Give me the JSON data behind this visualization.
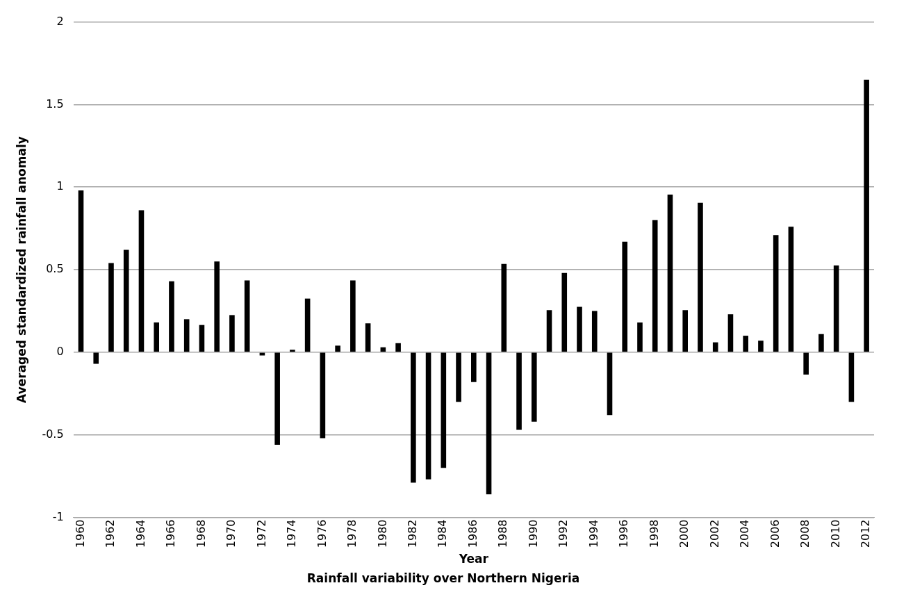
{
  "chart_data": {
    "type": "bar",
    "title": "Rainfall variability over Northern Nigeria",
    "xlabel": "Year",
    "ylabel": "Averaged standardized rainfall anomaly",
    "categories": [
      "1960",
      null,
      "1962",
      null,
      "1964",
      null,
      "1966",
      null,
      "1968",
      null,
      "1970",
      null,
      "1972",
      null,
      "1974",
      null,
      "1976",
      null,
      "1978",
      null,
      "1980",
      null,
      "1982",
      null,
      "1984",
      null,
      "1986",
      null,
      "1988",
      null,
      "1990",
      null,
      "1992",
      null,
      "1994",
      null,
      "1996",
      null,
      "1998",
      null,
      "2000",
      null,
      "2002",
      null,
      "2004",
      null,
      "2006",
      null,
      "2008",
      null,
      "2010",
      null,
      "2012"
    ],
    "values": [
      0.98,
      -0.07,
      0.54,
      0.62,
      0.86,
      0.18,
      0.43,
      0.2,
      0.165,
      0.55,
      0.225,
      0.435,
      -0.02,
      -0.56,
      0.015,
      0.325,
      -0.52,
      0.04,
      0.435,
      0.175,
      0.03,
      0.055,
      -0.79,
      -0.77,
      -0.7,
      -0.3,
      -0.18,
      -0.86,
      0.535,
      -0.47,
      -0.42,
      0.255,
      0.48,
      0.275,
      0.25,
      -0.38,
      0.67,
      0.18,
      0.8,
      0.955,
      0.255,
      0.905,
      0.06,
      0.23,
      0.1,
      0.07,
      0.71,
      0.76,
      -0.135,
      0.11,
      0.525,
      -0.3,
      1.65
    ],
    "color": "#000000",
    "ylim": [
      -1,
      2
    ],
    "yticks": [
      -1,
      -0.5,
      0,
      0.5,
      1,
      1.5,
      2
    ],
    "grid": "y",
    "legend": false
  }
}
